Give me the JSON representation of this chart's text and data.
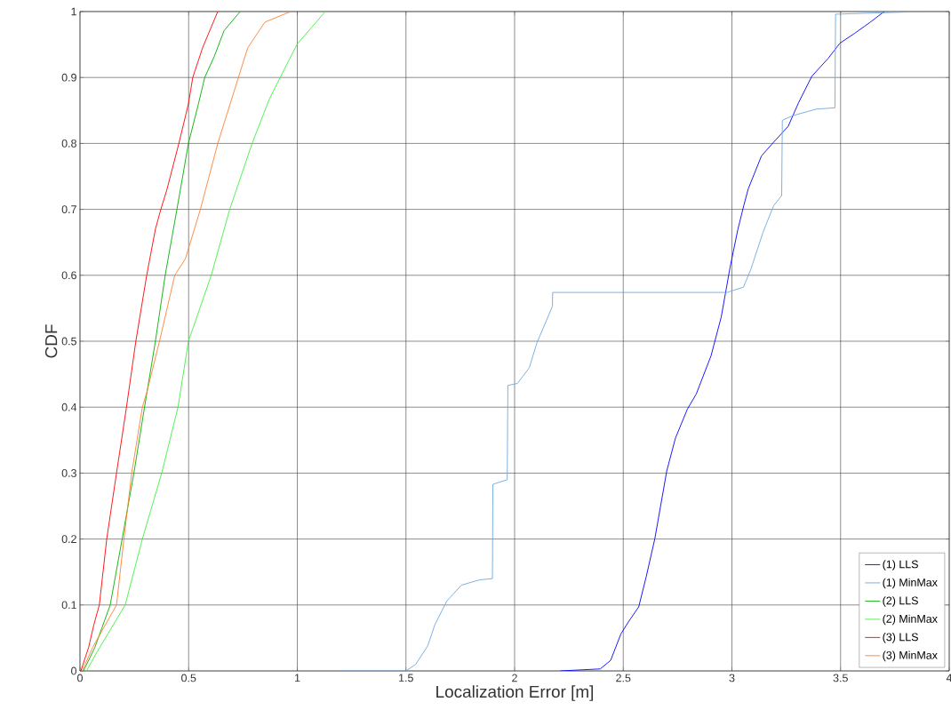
{
  "chart_data": {
    "type": "line",
    "xlabel": "Localization Error [m]",
    "ylabel": "CDF",
    "xlim": [
      0,
      4
    ],
    "ylim": [
      0,
      1
    ],
    "xticks": [
      0,
      0.5,
      1,
      1.5,
      2,
      2.5,
      3,
      3.5,
      4
    ],
    "yticks": [
      0,
      0.1,
      0.2,
      0.3,
      0.4,
      0.5,
      0.6,
      0.7,
      0.8,
      0.9,
      1
    ],
    "grid": true,
    "legend": "bottom right",
    "marker": "none",
    "line_style": "solid",
    "series": [
      {
        "name": "(1) LLS",
        "color": "#0000ff",
        "x": [
          2.211,
          2.394,
          2.442,
          2.489,
          2.523,
          2.571,
          2.605,
          2.645,
          2.7,
          2.74,
          2.795,
          2.836,
          2.904,
          2.951,
          2.992,
          3.027,
          3.054,
          3.075,
          3.136,
          3.184,
          3.259,
          3.307,
          3.368,
          3.443,
          3.497,
          3.565,
          3.633,
          3.701
        ],
        "values": [
          0,
          0.003,
          0.016,
          0.056,
          0.074,
          0.097,
          0.142,
          0.2,
          0.303,
          0.353,
          0.397,
          0.42,
          0.478,
          0.537,
          0.613,
          0.669,
          0.705,
          0.731,
          0.781,
          0.799,
          0.826,
          0.862,
          0.902,
          0.929,
          0.952,
          0.967,
          0.983,
          1.0
        ]
      },
      {
        "name": "(1) MinMax",
        "color": "#6fa8dc",
        "x": [
          1.2,
          1.5,
          1.545,
          1.6,
          1.633,
          1.688,
          1.755,
          1.837,
          1.898,
          1.9,
          1.966,
          1.969,
          2.013,
          2.068,
          2.102,
          2.174,
          2.175,
          2.978,
          3.053,
          3.087,
          3.143,
          3.191,
          3.229,
          3.232,
          3.279,
          3.388,
          3.474,
          3.477,
          3.878
        ],
        "values": [
          0,
          0,
          0.01,
          0.038,
          0.07,
          0.106,
          0.13,
          0.138,
          0.14,
          0.283,
          0.29,
          0.433,
          0.436,
          0.46,
          0.497,
          0.553,
          0.574,
          0.574,
          0.582,
          0.609,
          0.665,
          0.705,
          0.721,
          0.835,
          0.842,
          0.852,
          0.854,
          0.996,
          1.0
        ]
      },
      {
        "name": "(2) LLS",
        "color": "#00b000",
        "x": [
          0.016,
          0.069,
          0.139,
          0.194,
          0.248,
          0.297,
          0.347,
          0.392,
          0.446,
          0.499,
          0.545,
          0.574,
          0.618,
          0.663,
          0.737
        ],
        "values": [
          0,
          0.036,
          0.1,
          0.2,
          0.3,
          0.4,
          0.5,
          0.6,
          0.7,
          0.8,
          0.86,
          0.9,
          0.932,
          0.971,
          1
        ]
      },
      {
        "name": "(2) MinMax",
        "color": "#40f040",
        "x": [
          0.03,
          0.079,
          0.208,
          0.287,
          0.376,
          0.451,
          0.499,
          0.604,
          0.689,
          0.792,
          0.871,
          0.921,
          1.0,
          1.129
        ],
        "values": [
          0,
          0.029,
          0.1,
          0.2,
          0.3,
          0.4,
          0.5,
          0.6,
          0.7,
          0.8,
          0.867,
          0.9,
          0.951,
          1
        ]
      },
      {
        "name": "(3) LLS",
        "color": "#ff0000",
        "x": [
          0.004,
          0.04,
          0.063,
          0.089,
          0.123,
          0.168,
          0.214,
          0.257,
          0.307,
          0.347,
          0.372,
          0.4,
          0.455,
          0.499,
          0.519,
          0.564,
          0.634
        ],
        "values": [
          0,
          0.036,
          0.069,
          0.1,
          0.2,
          0.3,
          0.4,
          0.5,
          0.6,
          0.67,
          0.7,
          0.73,
          0.8,
          0.86,
          0.9,
          0.945,
          1
        ]
      },
      {
        "name": "(3) MinMax",
        "color": "#ff8030",
        "x": [
          0.01,
          0.059,
          0.168,
          0.202,
          0.238,
          0.287,
          0.307,
          0.366,
          0.436,
          0.485,
          0.554,
          0.634,
          0.729,
          0.772,
          0.851,
          0.97
        ],
        "values": [
          0,
          0.036,
          0.1,
          0.2,
          0.3,
          0.4,
          0.422,
          0.5,
          0.6,
          0.625,
          0.7,
          0.8,
          0.9,
          0.945,
          0.984,
          1
        ]
      }
    ]
  }
}
